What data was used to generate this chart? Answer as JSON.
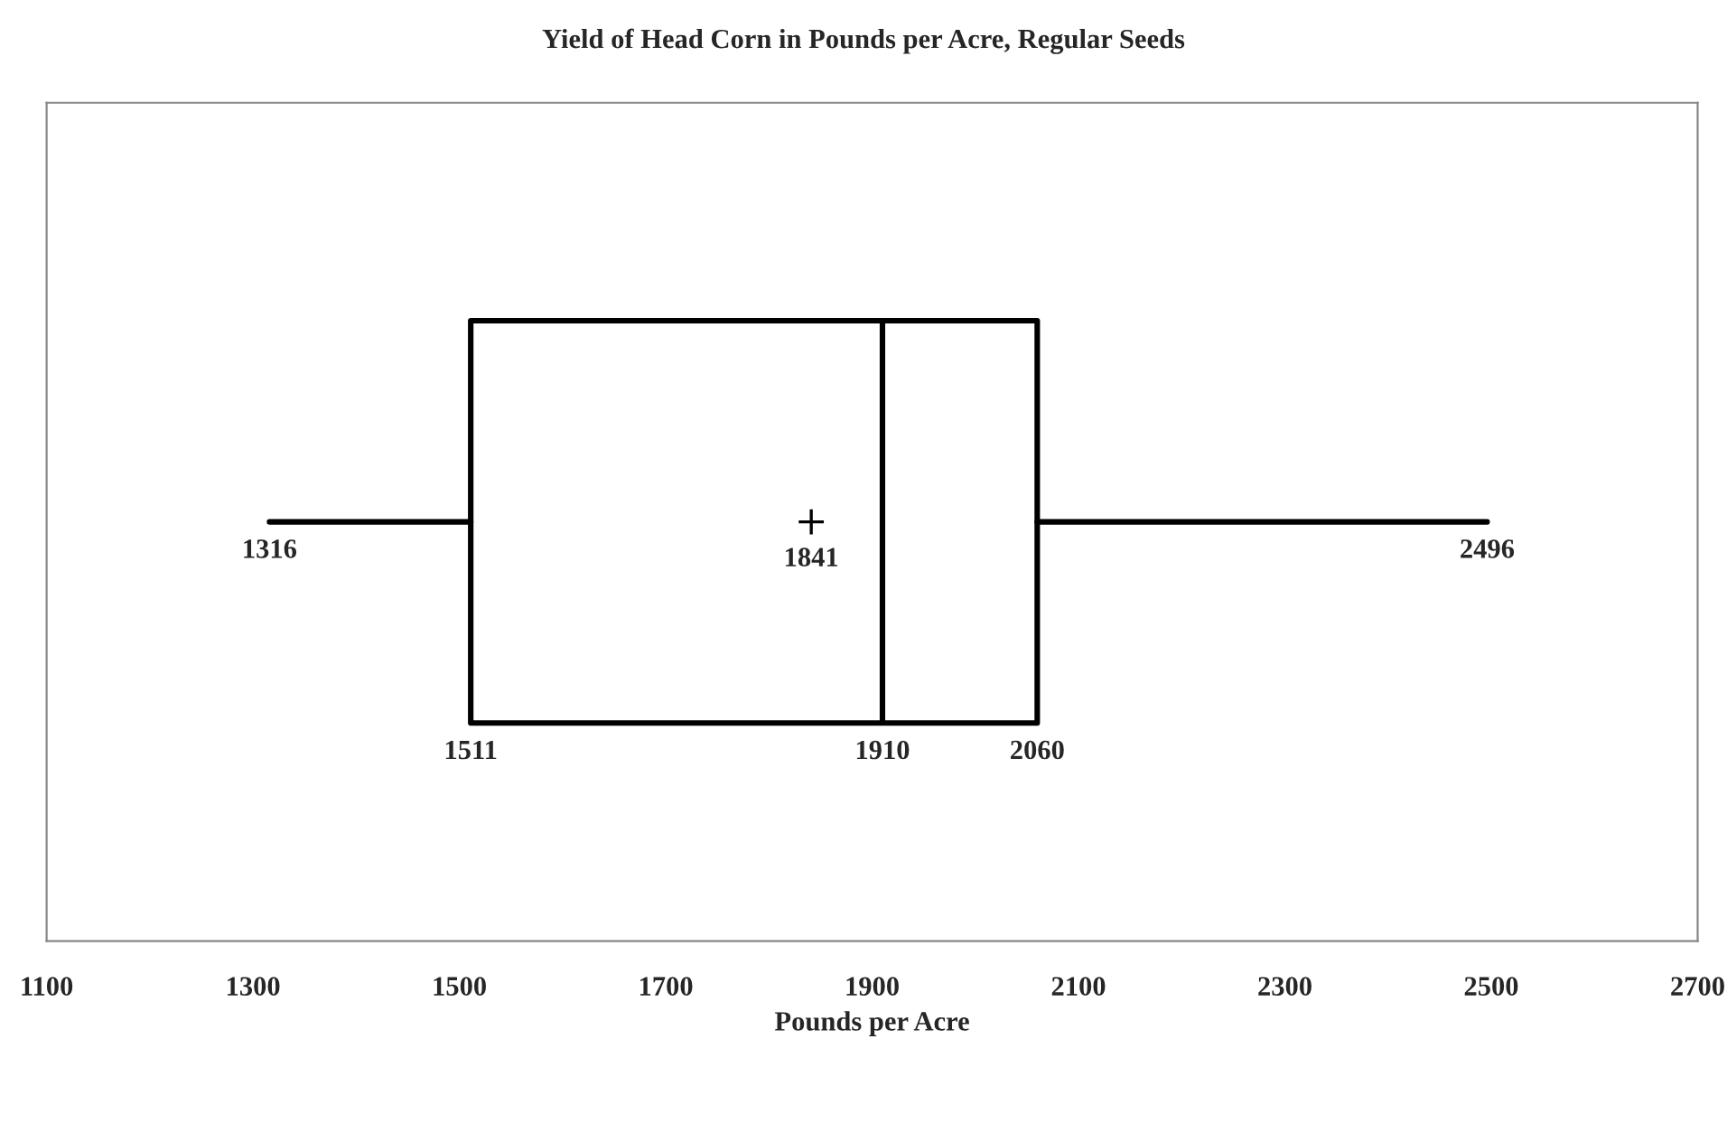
{
  "chart_data": {
    "type": "box",
    "title": "Yield of Head Corn in Pounds per Acre, Regular Seeds",
    "xlabel": "Pounds per Acre",
    "orientation": "horizontal",
    "categories": [
      null
    ],
    "boxes": [
      {
        "low": 1316,
        "q1": 1511,
        "median": 1910,
        "q3": 2060,
        "high": 2496,
        "mean": 1841
      }
    ],
    "annotations": [
      "1316",
      "2496",
      "1511",
      "1910",
      "2060",
      "1841"
    ],
    "xlim": [
      1100,
      2700
    ],
    "xticks": [
      1100,
      1300,
      1500,
      1700,
      1900,
      2100,
      2300,
      2500,
      2700
    ],
    "tick_labels": "x"
  }
}
